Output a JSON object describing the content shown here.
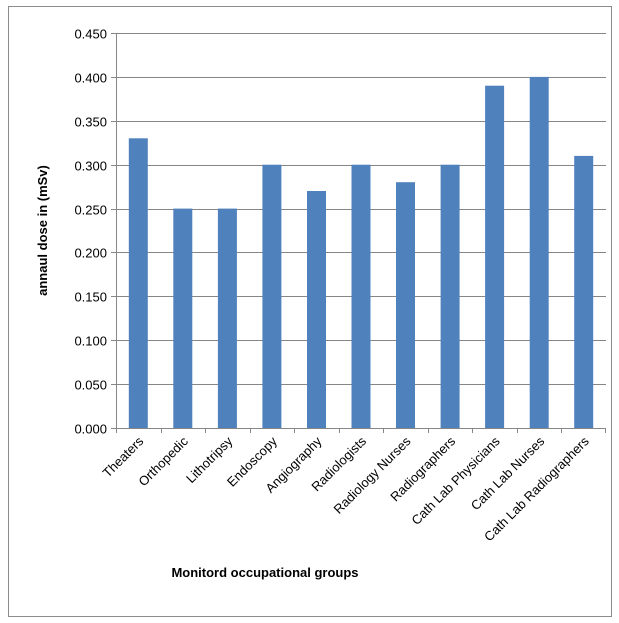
{
  "chart_data": {
    "type": "bar",
    "title": "",
    "xlabel": "Monitord occupational groups",
    "ylabel": "annaul dose in (mSv)",
    "categories": [
      "Theaters",
      "Orthopedic",
      "Lithotripsy",
      "Endoscopy",
      "Angiography",
      "Radiologists",
      "Radiology Nurses",
      "Radiographers",
      "Cath Lab Physicians",
      "Cath Lab Nurses",
      "Cath Lab  Radiographers"
    ],
    "values": [
      0.33,
      0.25,
      0.25,
      0.3,
      0.27,
      0.3,
      0.28,
      0.3,
      0.39,
      0.4,
      0.31
    ],
    "ylim": [
      0,
      0.45
    ],
    "yticks": [
      "0.000",
      "0.050",
      "0.100",
      "0.150",
      "0.200",
      "0.250",
      "0.300",
      "0.350",
      "0.400",
      "0.450"
    ],
    "grid": true,
    "legend": "none",
    "bar_color": "#4f81bd",
    "grid_color": "#868686"
  }
}
